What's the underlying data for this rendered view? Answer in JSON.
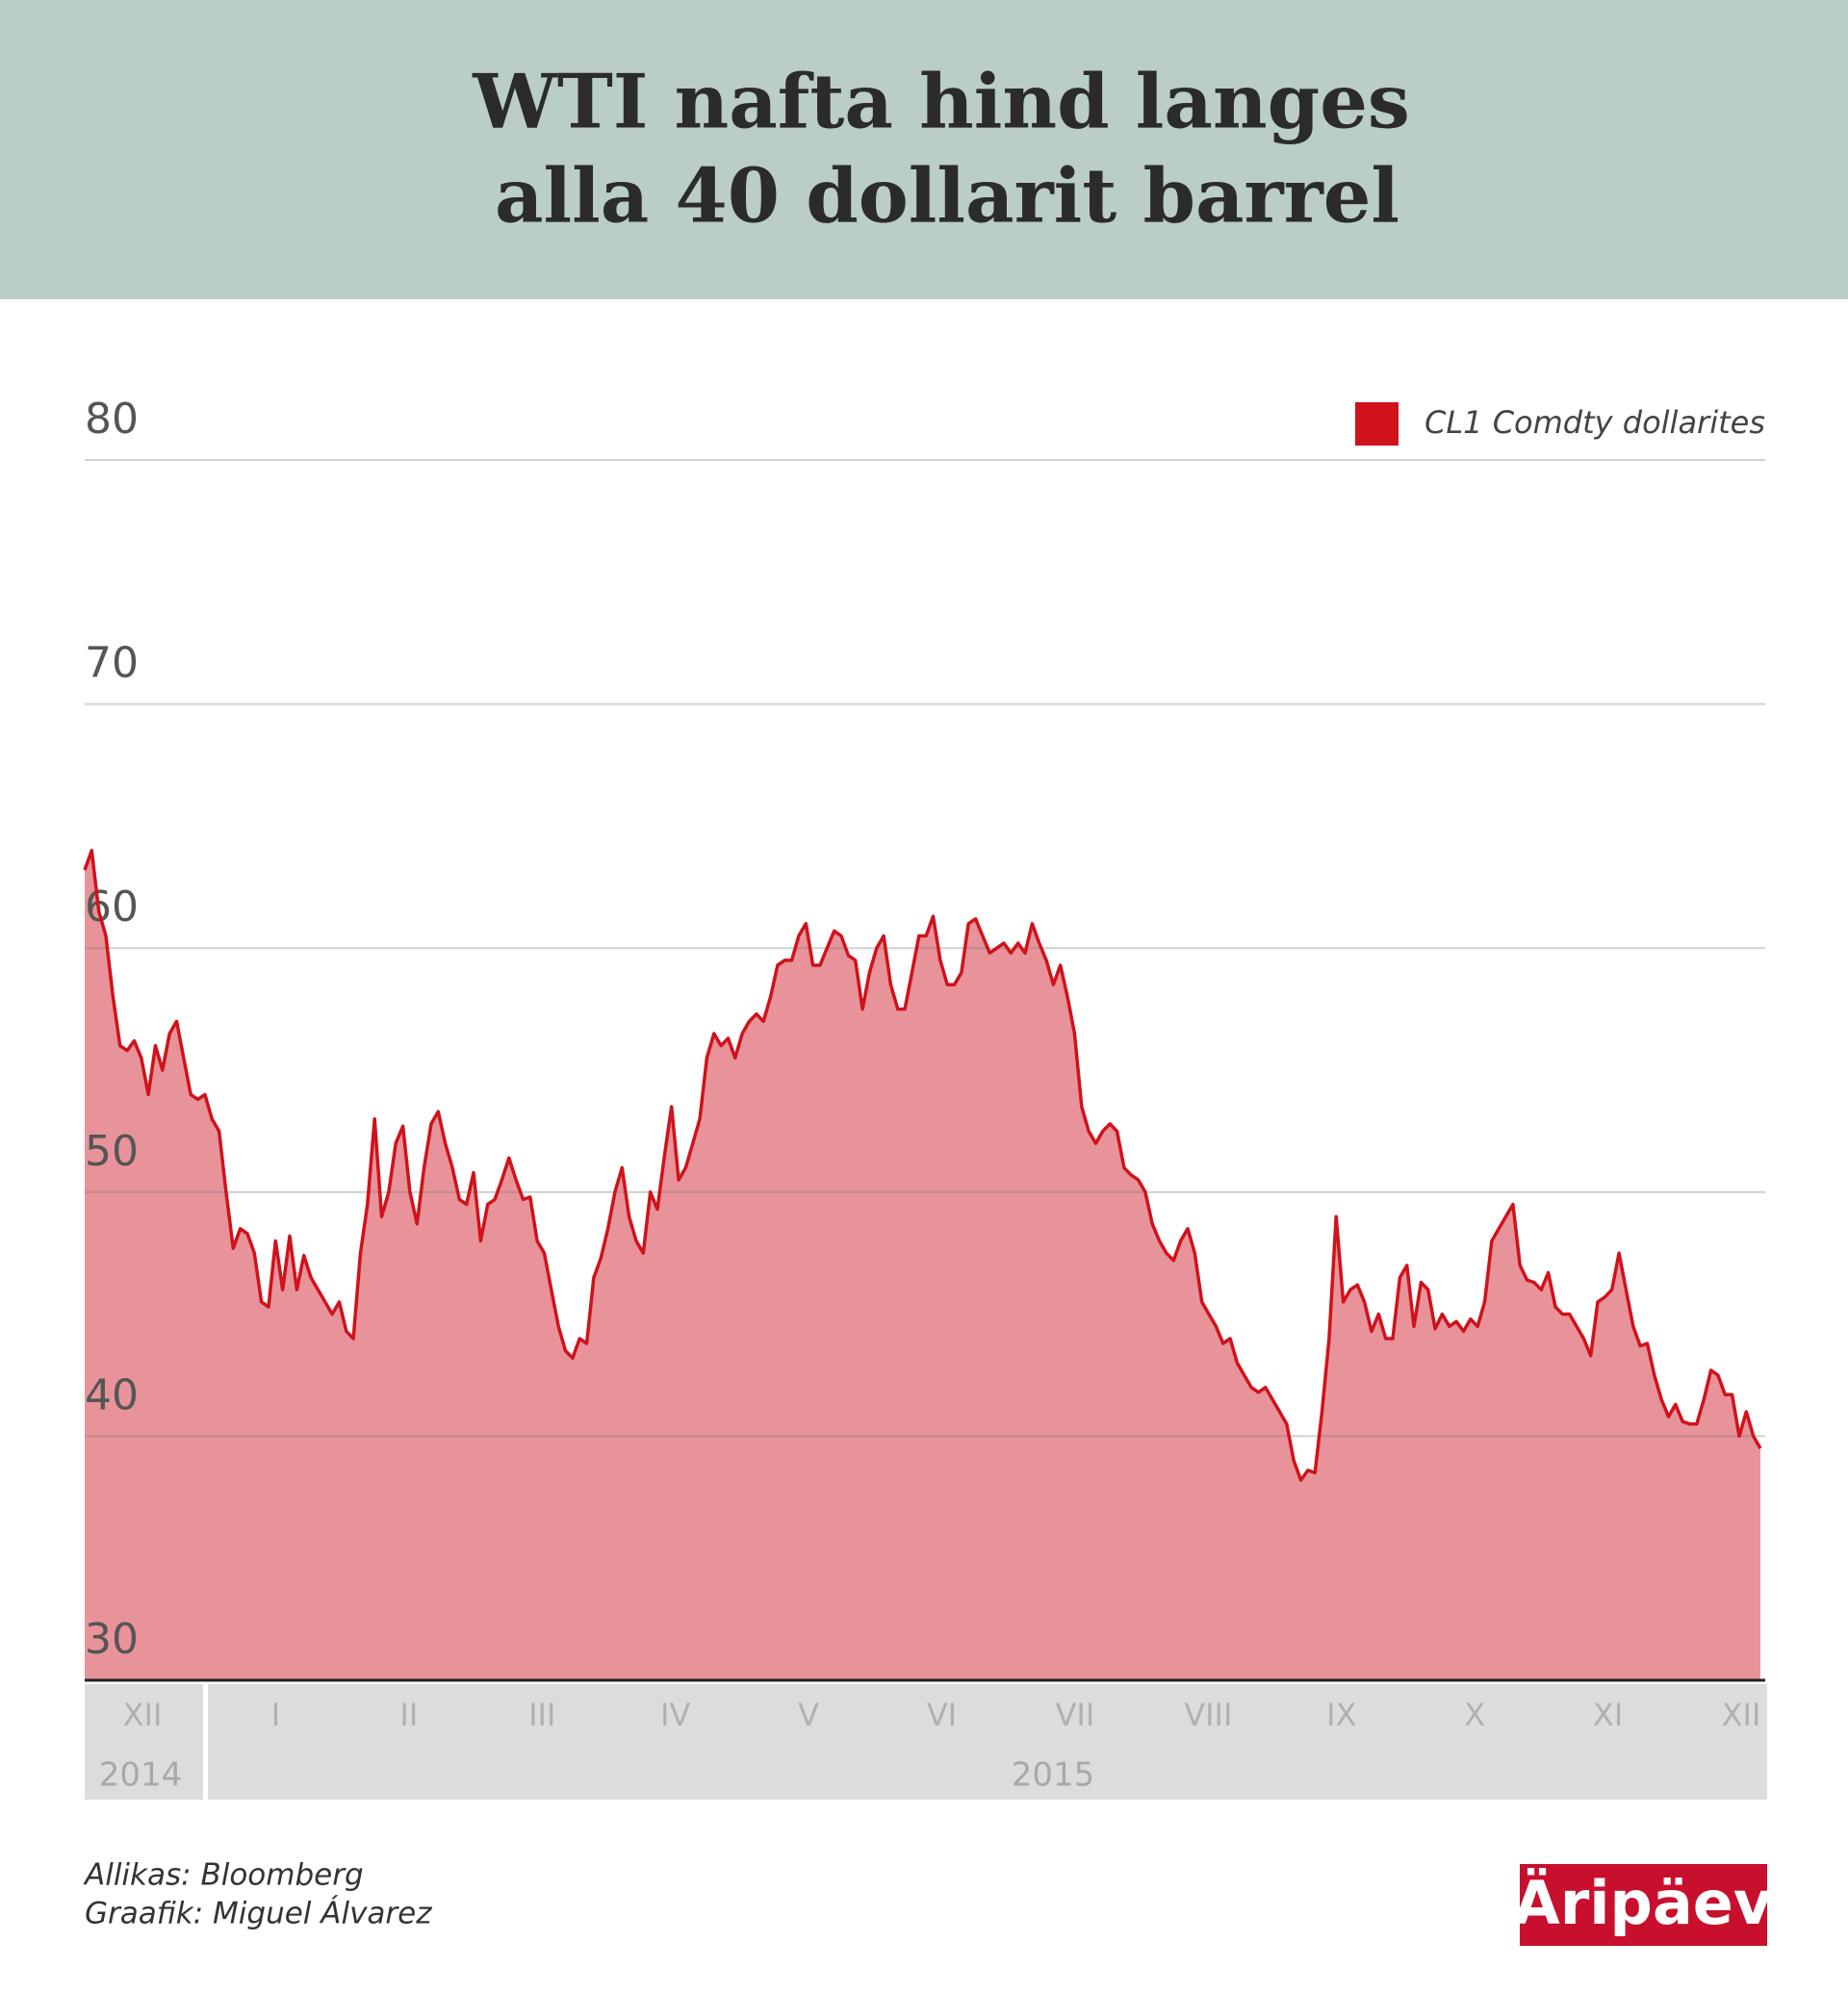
{
  "chart_data": {
    "type": "area",
    "title_lines": [
      "WTI nafta hind langes",
      "alla 40 dollarit barrel"
    ],
    "series": [
      {
        "name": "CL1 Comdty dollarites",
        "color": "#d0121b",
        "fill": "#e8939a",
        "values": [
          63.2,
          64,
          61.5,
          60.5,
          58,
          56,
          55.8,
          56.2,
          55.5,
          54,
          56,
          55,
          56.5,
          57,
          55.5,
          54,
          53.8,
          54,
          53,
          52.5,
          50,
          47.7,
          48.5,
          48.3,
          47.5,
          45.5,
          45.3,
          48,
          46,
          48.2,
          46,
          47.4,
          46.5,
          46,
          45.5,
          45,
          45.5,
          44.3,
          44,
          47.5,
          49.5,
          53,
          49,
          50,
          52,
          52.7,
          50,
          48.7,
          51,
          52.8,
          53.3,
          52,
          51,
          49.7,
          49.5,
          50.8,
          48,
          49.5,
          49.7,
          50.5,
          51.4,
          50.5,
          49.7,
          49.8,
          48,
          47.5,
          46,
          44.5,
          43.5,
          43.2,
          44,
          43.8,
          46.5,
          47.3,
          48.5,
          50,
          51,
          49,
          48,
          47.5,
          50,
          49.3,
          51.5,
          53.5,
          50.5,
          51,
          52,
          53,
          55.5,
          56.5,
          56,
          56.3,
          55.5,
          56.5,
          57,
          57.3,
          57,
          58,
          59.3,
          59.5,
          59.5,
          60.5,
          61,
          59.3,
          59.3,
          60,
          60.7,
          60.5,
          59.7,
          59.5,
          57.5,
          59,
          60,
          60.5,
          58.5,
          57.5,
          57.5,
          59,
          60.5,
          60.5,
          61.3,
          59.5,
          58.5,
          58.5,
          59,
          61,
          61.2,
          60.5,
          59.8,
          60,
          60.2,
          59.8,
          60.2,
          59.8,
          61,
          60.2,
          59.5,
          58.5,
          59.3,
          58,
          56.5,
          53.5,
          52.5,
          52,
          52.5,
          52.8,
          52.5,
          51,
          50.7,
          50.5,
          50,
          48.7,
          48,
          47.5,
          47.2,
          48,
          48.5,
          47.5,
          45.5,
          45,
          44.5,
          43.8,
          44,
          43,
          42.5,
          42,
          41.8,
          42,
          41.5,
          41,
          40.5,
          39,
          38.2,
          38.6,
          38.5,
          41,
          44,
          49,
          45.5,
          46,
          46.2,
          45.5,
          44.3,
          45,
          44,
          44,
          46.5,
          47,
          44.5,
          46.3,
          46,
          44.4,
          45,
          44.5,
          44.7,
          44.3,
          44.8,
          44.5,
          45.5,
          48,
          48.5,
          49,
          49.5,
          47,
          46.4,
          46.3,
          46,
          46.7,
          45.3,
          45,
          45,
          44.5,
          44,
          43.3,
          45.5,
          45.7,
          46,
          47.5,
          46,
          44.5,
          43.7,
          43.8,
          42.5,
          41.5,
          40.8,
          41.3,
          40.6,
          40.5,
          40.5,
          41.5,
          42.7,
          42.5,
          41.7,
          41.7,
          40,
          41,
          40,
          39.5
        ]
      }
    ],
    "ylim": [
      30,
      80
    ],
    "yticks": [
      30,
      40,
      50,
      60,
      70,
      80
    ],
    "grid": true,
    "legend": "top-right",
    "month_labels": [
      "XII",
      "I",
      "II",
      "III",
      "IV",
      "V",
      "VI",
      "VII",
      "VIII",
      "IX",
      "X",
      "XI",
      "XII"
    ],
    "years": [
      "2014",
      "2015"
    ],
    "source": "Allikas:  Bloomberg",
    "credit": "Graafik:  Miguel Álvarez",
    "logo": "Äripäev"
  }
}
